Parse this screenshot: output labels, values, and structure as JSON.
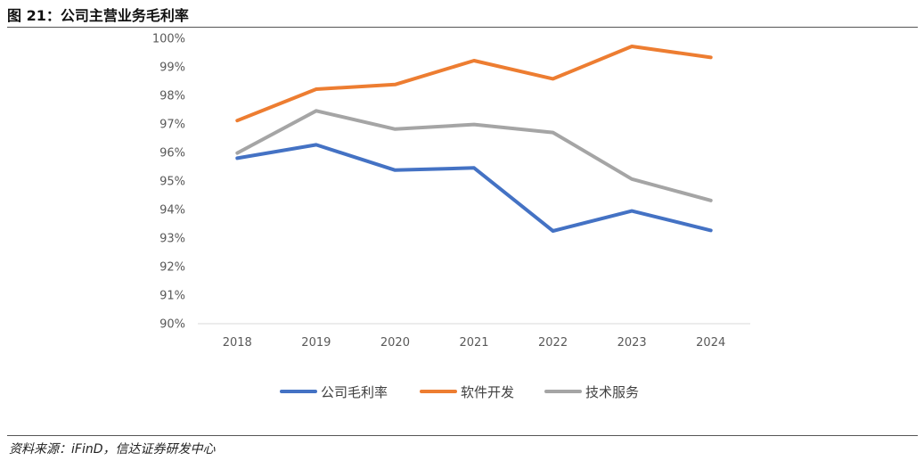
{
  "figure": {
    "title": "图 21：公司主营业务毛利率",
    "source": "资料来源：iFinD，信达证券研发中心"
  },
  "chart_data": {
    "type": "line",
    "title": "",
    "xlabel": "",
    "ylabel": "",
    "x": [
      "2018",
      "2019",
      "2020",
      "2021",
      "2022",
      "2023",
      "2024"
    ],
    "ylim": [
      90,
      100
    ],
    "y_ticks": [
      "90%",
      "91%",
      "92%",
      "93%",
      "94%",
      "95%",
      "96%",
      "97%",
      "98%",
      "99%",
      "100%"
    ],
    "grid": false,
    "legend_position": "bottom",
    "series": [
      {
        "name": "公司毛利率",
        "color": "#4472C4",
        "values": [
          95.8,
          96.27,
          95.38,
          95.46,
          93.25,
          93.95,
          93.27
        ]
      },
      {
        "name": "软件开发",
        "color": "#ED7D31",
        "values": [
          97.12,
          98.22,
          98.38,
          99.22,
          98.58,
          99.72,
          99.33
        ]
      },
      {
        "name": "技术服务",
        "color": "#A5A5A5",
        "values": [
          95.98,
          97.46,
          96.82,
          96.98,
          96.7,
          95.07,
          94.32
        ]
      }
    ]
  }
}
